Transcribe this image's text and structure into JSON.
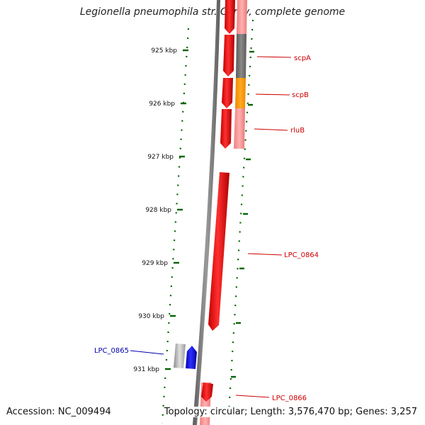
{
  "title": "Legionella pneumophila str. Corby, complete genome",
  "accession": "Accession: NC_009494",
  "topology": "Topology: circular; Length: 3,576,470 bp; Genes: 3,257",
  "colors": {
    "forward_gene": "#0000ff",
    "reverse_gene": "#ff0000",
    "backbone": "#808080",
    "ticks": "#006400",
    "label_red": "#cc0000",
    "label_blue": "#0000aa",
    "cog_gray": "#6e6e6e",
    "cog_orange": "#ff9900",
    "cog_pink": "#f58c8c"
  },
  "scale": {
    "ticks": [
      {
        "label": "925 kbp",
        "pos": 925
      },
      {
        "label": "926 kbp",
        "pos": 926
      },
      {
        "label": "927 kbp",
        "pos": 927
      },
      {
        "label": "928 kbp",
        "pos": 928
      },
      {
        "label": "929 kbp",
        "pos": 929
      },
      {
        "label": "930 kbp",
        "pos": 930
      },
      {
        "label": "931 kbp",
        "pos": 931
      }
    ]
  },
  "genes": [
    {
      "name": "scpA",
      "strand": "reverse"
    },
    {
      "name": "scpB",
      "strand": "reverse"
    },
    {
      "name": "rluB",
      "strand": "reverse"
    },
    {
      "name": "LPC_0864",
      "strand": "reverse"
    },
    {
      "name": "LPC_0865",
      "strand": "forward"
    },
    {
      "name": "LPC_0866",
      "strand": "reverse"
    }
  ]
}
